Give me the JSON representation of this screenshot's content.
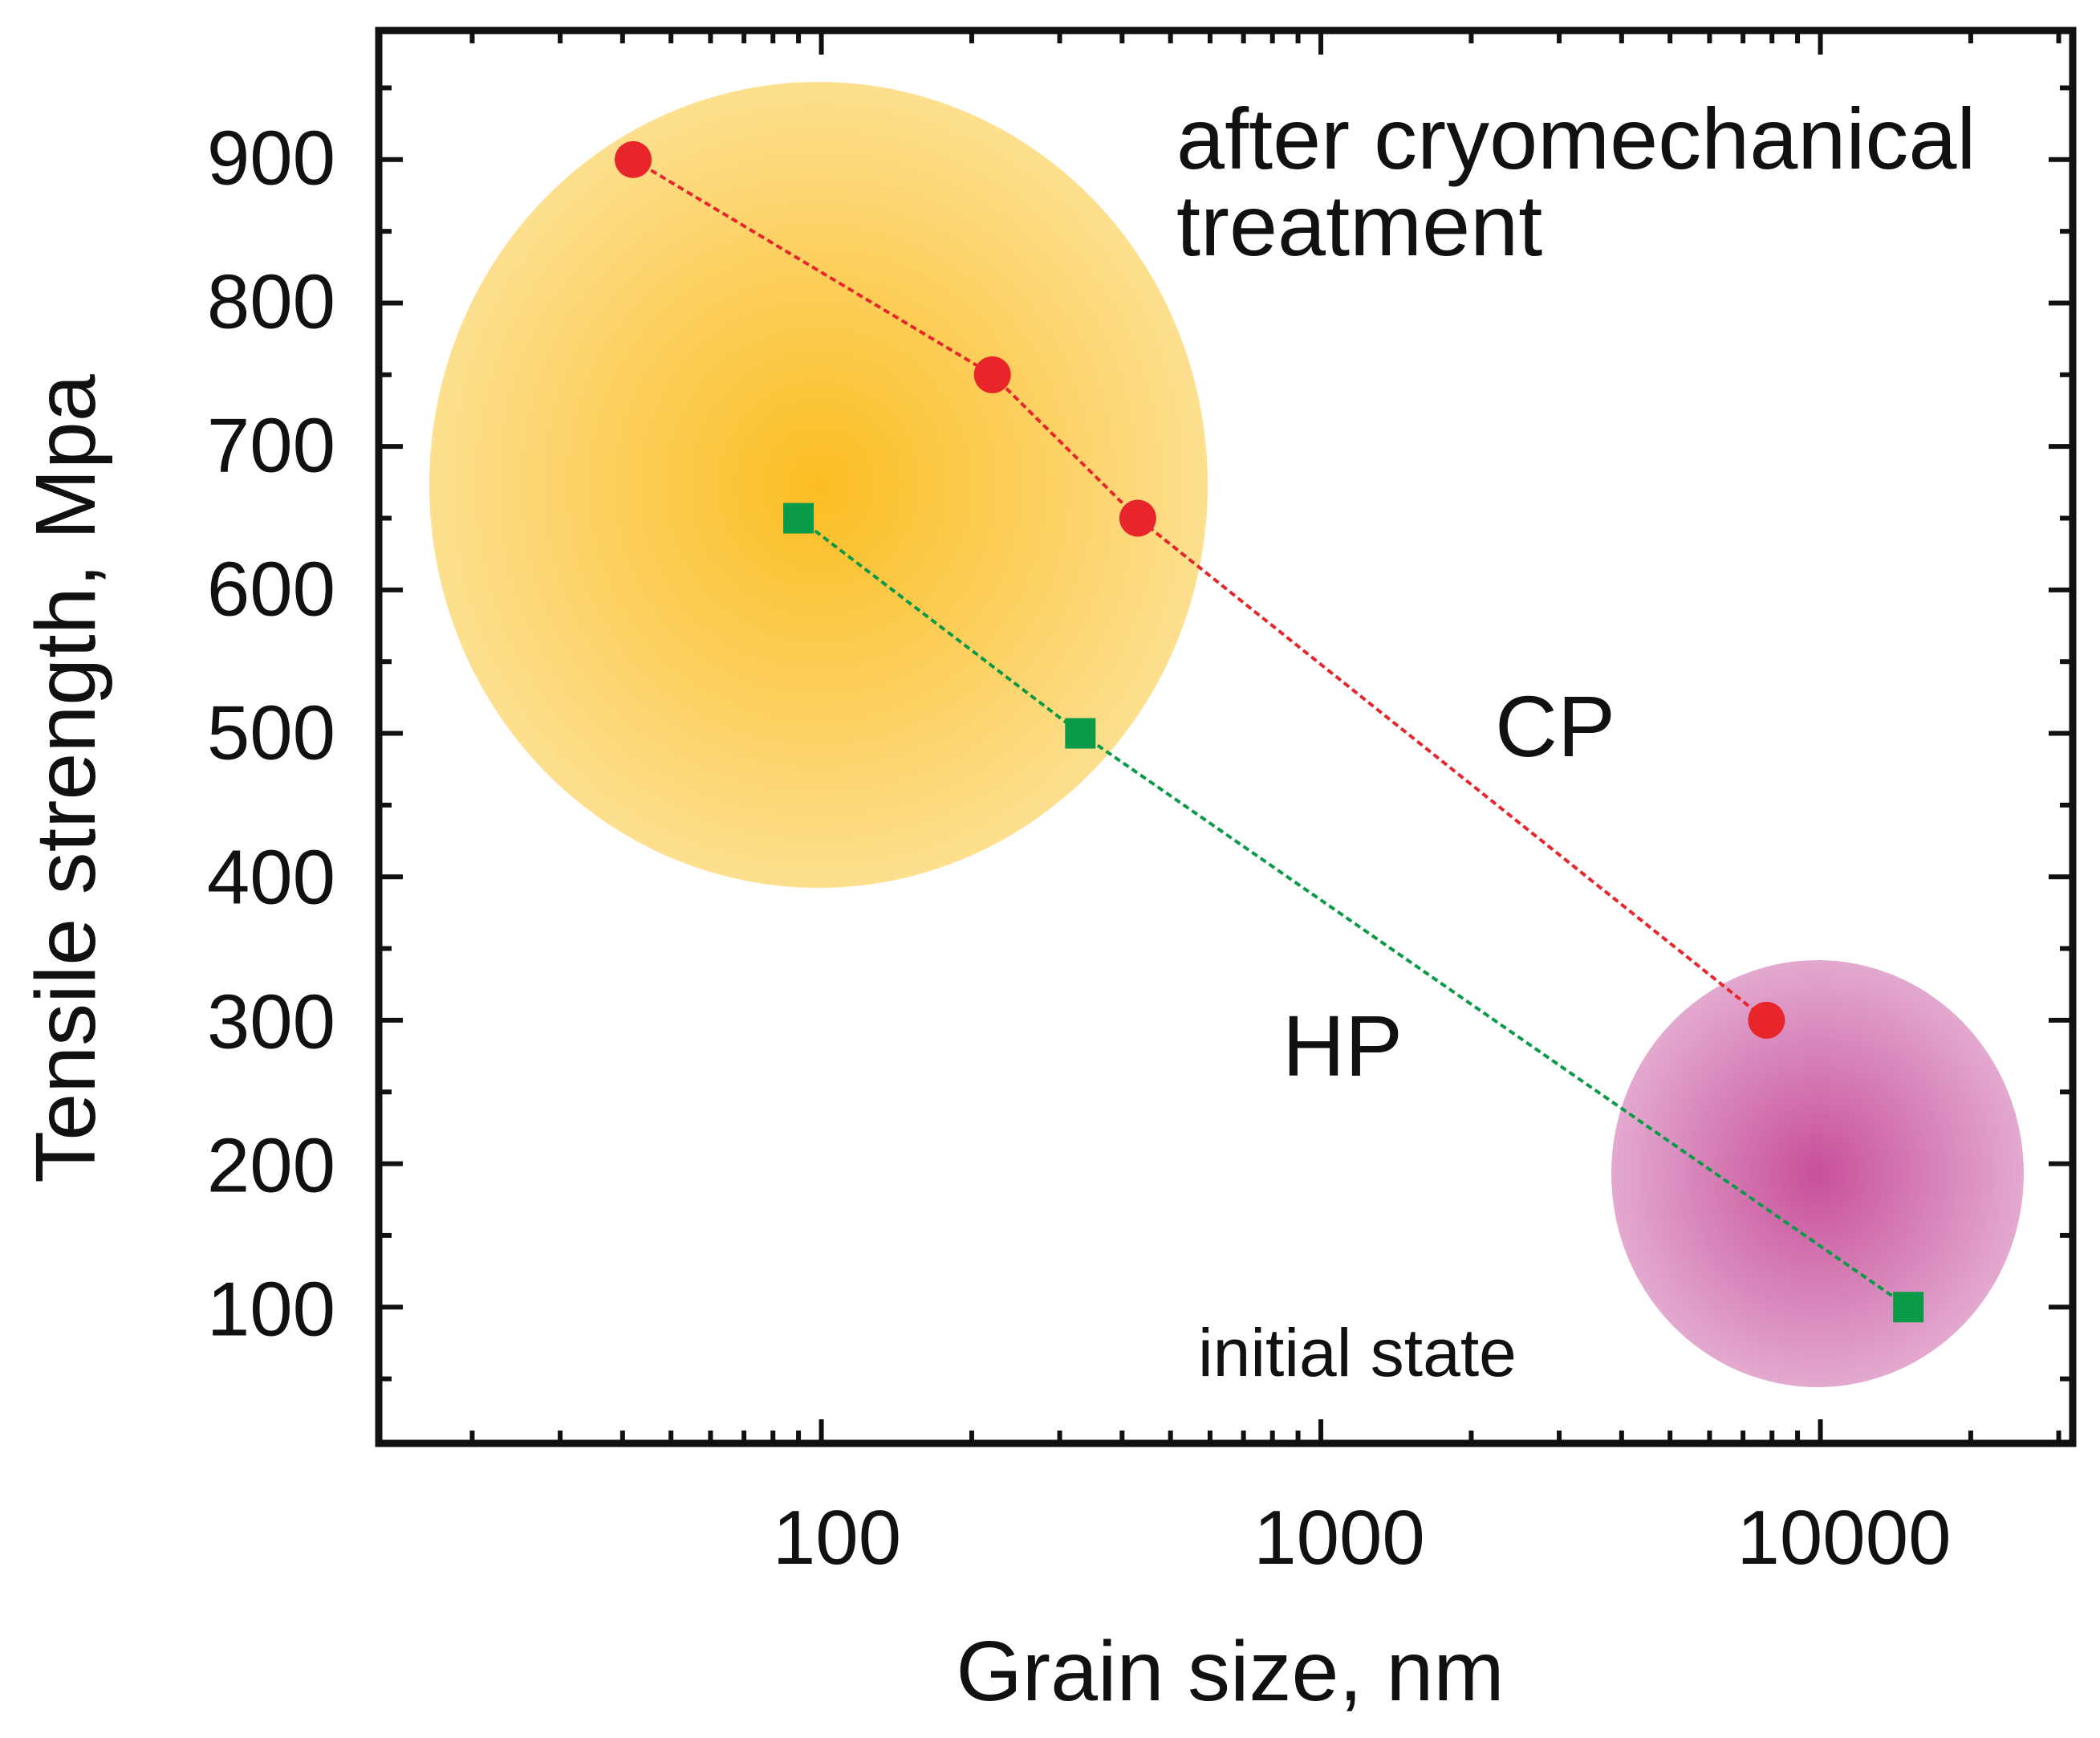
{
  "chart_data": {
    "type": "scatter",
    "title": "",
    "xlabel": "Grain size, nm",
    "ylabel": "Tensile strength, Mpa",
    "xscale": "log",
    "xlim": [
      13,
      32000
    ],
    "ylim": [
      5,
      990
    ],
    "x_ticks": [
      100,
      1000,
      10000
    ],
    "x_tick_labels": [
      "100",
      "1000",
      "10000"
    ],
    "y_ticks": [
      100,
      200,
      300,
      400,
      500,
      600,
      700,
      800,
      900
    ],
    "y_tick_labels": [
      "100",
      "200",
      "300",
      "400",
      "500",
      "600",
      "700",
      "800",
      "900"
    ],
    "grid": false,
    "series": [
      {
        "name": "CP",
        "marker": "circle",
        "color": "#e8252a",
        "line_style": "dotted",
        "points": [
          {
            "x": 42,
            "y": 900
          },
          {
            "x": 220,
            "y": 750
          },
          {
            "x": 430,
            "y": 650
          },
          {
            "x": 7800,
            "y": 300
          }
        ]
      },
      {
        "name": "HP",
        "marker": "square",
        "color": "#0a9a48",
        "line_style": "dotted",
        "points": [
          {
            "x": 90,
            "y": 650
          },
          {
            "x": 330,
            "y": 500
          },
          {
            "x": 15000,
            "y": 100
          }
        ]
      }
    ],
    "regions": [
      {
        "name": "after cryomechanical treatment",
        "center_x": 95,
        "center_y": 675,
        "color": "#fbbf24"
      },
      {
        "name": "initial state",
        "center_x": 9400,
        "center_y": 197,
        "color": "#c8509a"
      }
    ],
    "annotations": {
      "cryo_line1": "after cryomechanical",
      "cryo_line2": "treatment",
      "cp": "CP",
      "hp": "HP",
      "initial": "initial state"
    }
  }
}
